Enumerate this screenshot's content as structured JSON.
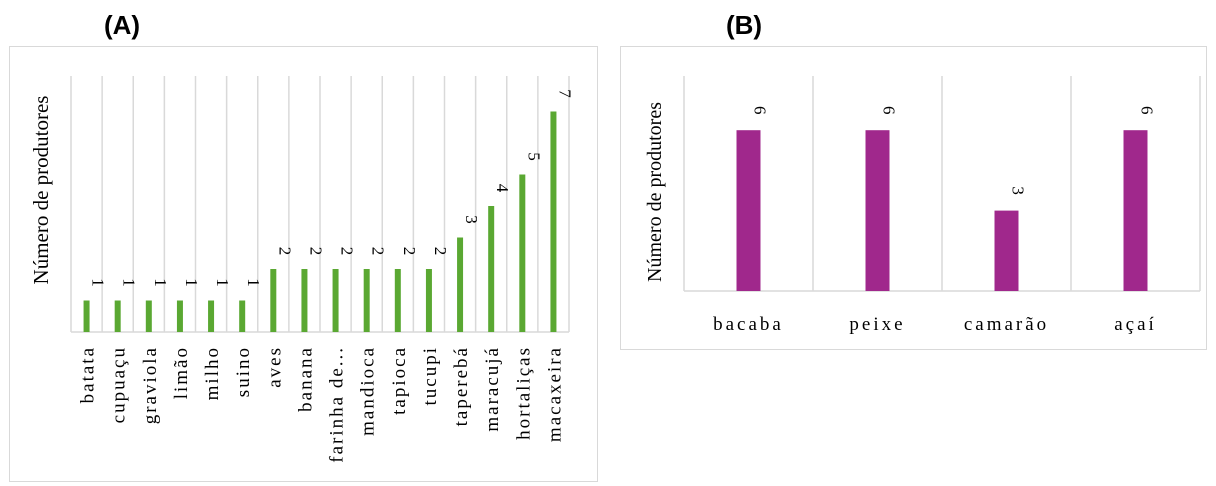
{
  "panels": [
    {
      "label": "(A)"
    },
    {
      "label": "(B)"
    }
  ],
  "chart_data": [
    {
      "type": "bar",
      "ylabel": "Número de produtores",
      "categories": [
        "batata",
        "cupuaçu",
        "graviola",
        "limão",
        "milho",
        "suino",
        "aves",
        "banana",
        "farinha de...",
        "mandioca",
        "tapioca",
        "tucupi",
        "taperebá",
        "maracujá",
        "hortaliças",
        "macaxeira"
      ],
      "values": [
        1,
        1,
        1,
        1,
        1,
        1,
        2,
        2,
        2,
        2,
        2,
        2,
        3,
        4,
        5,
        7
      ],
      "data_labels": [
        "1",
        "1",
        "1",
        "1",
        "1",
        "1",
        "2",
        "2",
        "2",
        "2",
        "2",
        "2",
        "3",
        "4",
        "5",
        "7"
      ],
      "ylim": [
        0,
        7
      ],
      "color": "#5aa832",
      "grid": "vertical category separators"
    },
    {
      "type": "bar",
      "ylabel": "Número de produtores",
      "categories": [
        "bacaba",
        "peixe",
        "camarão",
        "açaí"
      ],
      "values": [
        6,
        6,
        3,
        6
      ],
      "data_labels": [
        "6",
        "6",
        "3",
        "6"
      ],
      "ylim": [
        0,
        6
      ],
      "color": "#a0288c",
      "grid": "vertical category separators"
    }
  ]
}
